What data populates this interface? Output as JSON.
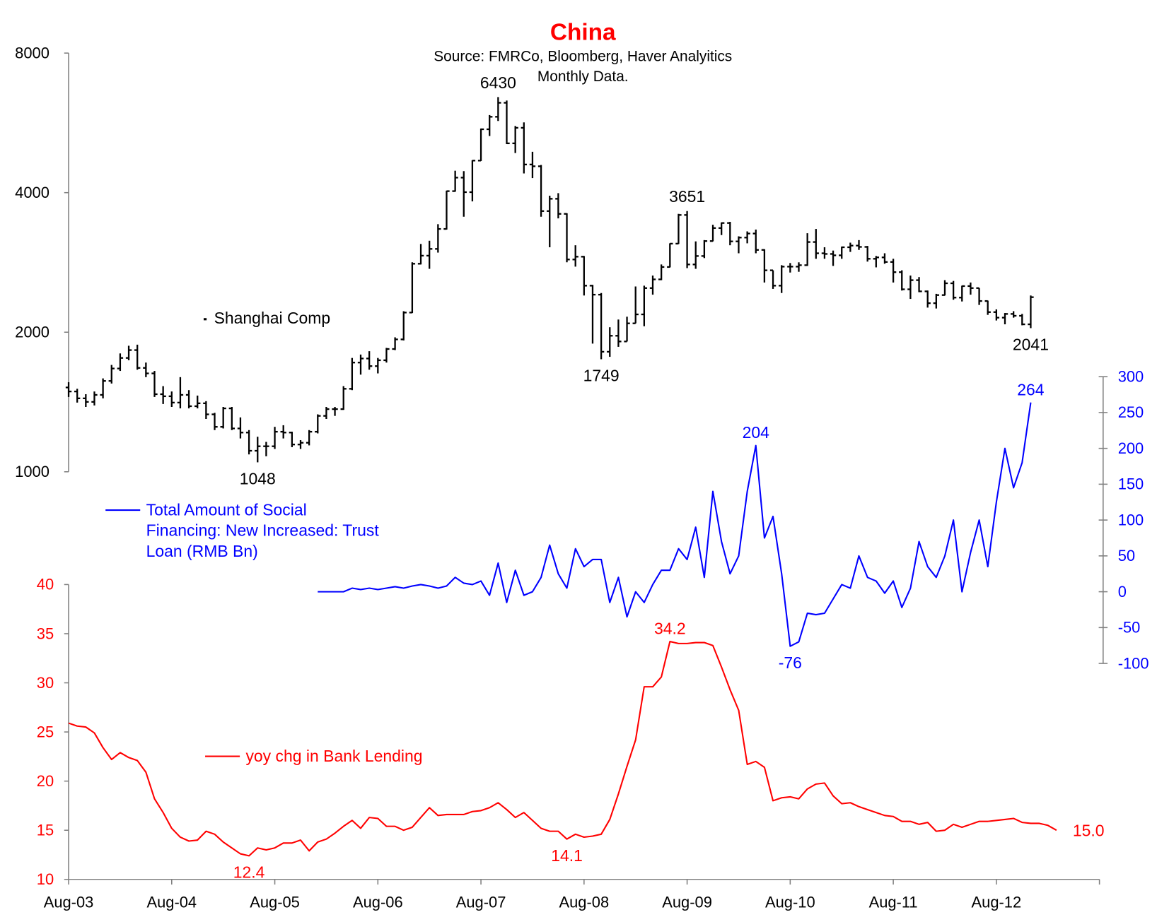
{
  "chart_data": {
    "type": "combo",
    "title": "China",
    "subtitle": [
      "Source: FMRCo, Bloomberg, Haver Analyitics",
      "Monthly Data."
    ],
    "x": [
      "2003-08",
      "2003-09",
      "2003-10",
      "2003-11",
      "2003-12",
      "2004-01",
      "2004-02",
      "2004-03",
      "2004-04",
      "2004-05",
      "2004-06",
      "2004-07",
      "2004-08",
      "2004-09",
      "2004-10",
      "2004-11",
      "2004-12",
      "2005-01",
      "2005-02",
      "2005-03",
      "2005-04",
      "2005-05",
      "2005-06",
      "2005-07",
      "2005-08",
      "2005-09",
      "2005-10",
      "2005-11",
      "2005-12",
      "2006-01",
      "2006-02",
      "2006-03",
      "2006-04",
      "2006-05",
      "2006-06",
      "2006-07",
      "2006-08",
      "2006-09",
      "2006-10",
      "2006-11",
      "2006-12",
      "2007-01",
      "2007-02",
      "2007-03",
      "2007-04",
      "2007-05",
      "2007-06",
      "2007-07",
      "2007-08",
      "2007-09",
      "2007-10",
      "2007-11",
      "2007-12",
      "2008-01",
      "2008-02",
      "2008-03",
      "2008-04",
      "2008-05",
      "2008-06",
      "2008-07",
      "2008-08",
      "2008-09",
      "2008-10",
      "2008-11",
      "2008-12",
      "2009-01",
      "2009-02",
      "2009-03",
      "2009-04",
      "2009-05",
      "2009-06",
      "2009-07",
      "2009-08",
      "2009-09",
      "2009-10",
      "2009-11",
      "2009-12",
      "2010-01",
      "2010-02",
      "2010-03",
      "2010-04",
      "2010-05",
      "2010-06",
      "2010-07",
      "2010-08",
      "2010-09",
      "2010-10",
      "2010-11",
      "2010-12",
      "2011-01",
      "2011-02",
      "2011-03",
      "2011-04",
      "2011-05",
      "2011-06",
      "2011-07",
      "2011-08",
      "2011-09",
      "2011-10",
      "2011-11",
      "2011-12",
      "2012-01",
      "2012-02",
      "2012-03",
      "2012-04",
      "2012-05",
      "2012-06",
      "2012-07",
      "2012-08",
      "2012-09",
      "2012-10",
      "2012-11",
      "2012-12",
      "2013-01",
      "2013-02",
      "2013-03"
    ],
    "xlim": [
      "2003-08",
      "2013-08"
    ],
    "xticks": [
      {
        "value": "2003-08",
        "label": "Aug-03"
      },
      {
        "value": "2004-08",
        "label": "Aug-04"
      },
      {
        "value": "2005-08",
        "label": "Aug-05"
      },
      {
        "value": "2006-08",
        "label": "Aug-06"
      },
      {
        "value": "2007-08",
        "label": "Aug-07"
      },
      {
        "value": "2008-08",
        "label": "Aug-08"
      },
      {
        "value": "2009-08",
        "label": "Aug-09"
      },
      {
        "value": "2010-08",
        "label": "Aug-10"
      },
      {
        "value": "2011-08",
        "label": "Aug-11"
      },
      {
        "value": "2012-08",
        "label": "Aug-12"
      }
    ],
    "ylim": [
      1000,
      8000
    ],
    "yticks": [
      1000,
      2000,
      4000,
      8000
    ],
    "ylog": true,
    "y2lim": [
      -100,
      300
    ],
    "y2ticks": [
      -100,
      -50,
      0,
      50,
      100,
      150,
      200,
      250,
      300
    ],
    "y3lim": [
      10,
      40
    ],
    "y3ticks": [
      10,
      15,
      20,
      25,
      30,
      35,
      40
    ],
    "series": [
      {
        "name": "Shanghai Comp",
        "type": "ohlc",
        "color": "#000000",
        "axis": "y",
        "open": [
          1520,
          1490,
          1440,
          1415,
          1465,
          1570,
          1670,
          1760,
          1830,
          1675,
          1630,
          1470,
          1455,
          1410,
          1465,
          1385,
          1405,
          1330,
          1250,
          1370,
          1240,
          1215,
          1110,
          1135,
          1135,
          1220,
          1215,
          1145,
          1155,
          1220,
          1320,
          1365,
          1365,
          1510,
          1720,
          1755,
          1690,
          1740,
          1840,
          1930,
          2205,
          2810,
          2925,
          3025,
          3340,
          4030,
          4310,
          4010,
          4690,
          5480,
          5830,
          6250,
          5110,
          5520,
          4600,
          4560,
          3650,
          3880,
          3600,
          2870,
          2910,
          2520,
          2410,
          1815,
          1965,
          1910,
          2090,
          2185,
          2490,
          2600,
          2765,
          3105,
          3580,
          2800,
          2920,
          3145,
          3355,
          3440,
          3140,
          3200,
          3265,
          3010,
          2720,
          2520,
          2770,
          2770,
          2790,
          3130,
          2960,
          2950,
          2930,
          3050,
          3075,
          3055,
          2880,
          2900,
          2835,
          2695,
          2475,
          2590,
          2450,
          2310,
          2405,
          2550,
          2375,
          2515,
          2490,
          2335,
          2210,
          2150,
          2190,
          2170,
          2080,
          null,
          null,
          null
        ],
        "high": [
          1560,
          1510,
          1470,
          1490,
          1590,
          1700,
          1800,
          1870,
          1880,
          1720,
          1650,
          1530,
          1490,
          1600,
          1500,
          1460,
          1420,
          1340,
          1380,
          1380,
          1310,
          1230,
          1190,
          1160,
          1250,
          1260,
          1220,
          1170,
          1230,
          1330,
          1380,
          1380,
          1530,
          1760,
          1790,
          1820,
          1760,
          1850,
          1950,
          2220,
          2830,
          3100,
          3150,
          3420,
          4040,
          4460,
          4450,
          4700,
          5500,
          5880,
          6430,
          6320,
          5570,
          5670,
          4900,
          4590,
          3940,
          3990,
          3610,
          3080,
          2920,
          2530,
          2430,
          2050,
          2130,
          2160,
          2510,
          2520,
          2650,
          2800,
          3110,
          3600,
          3651,
          3140,
          3160,
          3410,
          3450,
          3460,
          3220,
          3300,
          3330,
          3020,
          2720,
          2790,
          2820,
          2830,
          3270,
          3340,
          3050,
          3000,
          3060,
          3120,
          3160,
          3070,
          2920,
          2960,
          2880,
          2720,
          2650,
          2630,
          2460,
          2420,
          2590,
          2580,
          2520,
          2560,
          2490,
          2340,
          2240,
          2200,
          2220,
          2190,
          2400,
          null,
          null,
          null
        ],
        "low": [
          1450,
          1410,
          1380,
          1390,
          1440,
          1550,
          1650,
          1740,
          1660,
          1600,
          1450,
          1400,
          1380,
          1370,
          1370,
          1370,
          1300,
          1230,
          1240,
          1230,
          1180,
          1090,
          1048,
          1080,
          1120,
          1180,
          1130,
          1120,
          1140,
          1210,
          1300,
          1320,
          1360,
          1500,
          1620,
          1660,
          1630,
          1720,
          1830,
          1920,
          2200,
          2800,
          2740,
          2970,
          3330,
          4020,
          3550,
          3830,
          4680,
          5300,
          5710,
          5090,
          4870,
          4400,
          4300,
          3550,
          3050,
          3520,
          2830,
          2770,
          2400,
          1890,
          1749,
          1770,
          1860,
          1910,
          2090,
          2060,
          2410,
          2590,
          2760,
          3100,
          2750,
          2740,
          2890,
          3140,
          3240,
          3080,
          2960,
          3110,
          2960,
          2560,
          2480,
          2430,
          2690,
          2700,
          2780,
          2880,
          2880,
          2780,
          2880,
          2980,
          3010,
          2840,
          2760,
          2810,
          2560,
          2460,
          2360,
          2440,
          2260,
          2250,
          2400,
          2350,
          2330,
          2410,
          2290,
          2180,
          2120,
          2080,
          2150,
          2070,
          2041,
          null,
          null,
          null
        ],
        "close": [
          1490,
          1440,
          1415,
          1465,
          1570,
          1670,
          1760,
          1830,
          1675,
          1630,
          1470,
          1455,
          1410,
          1465,
          1385,
          1405,
          1330,
          1250,
          1370,
          1240,
          1215,
          1110,
          1135,
          1135,
          1220,
          1215,
          1145,
          1155,
          1220,
          1320,
          1365,
          1365,
          1510,
          1720,
          1755,
          1690,
          1740,
          1840,
          1930,
          2205,
          2810,
          2925,
          3025,
          3340,
          4030,
          4310,
          4010,
          4690,
          5480,
          5830,
          6250,
          5110,
          5520,
          4600,
          4560,
          3650,
          3880,
          3600,
          2870,
          2910,
          2520,
          2410,
          1815,
          1965,
          1910,
          2090,
          2185,
          2490,
          2600,
          2765,
          3105,
          3580,
          2800,
          2920,
          3145,
          3355,
          3440,
          3140,
          3200,
          3265,
          3010,
          2720,
          2520,
          2770,
          2770,
          2790,
          3130,
          2960,
          2950,
          2930,
          3050,
          3075,
          3055,
          2880,
          2900,
          2835,
          2695,
          2475,
          2590,
          2450,
          2310,
          2405,
          2550,
          2375,
          2515,
          2490,
          2335,
          2210,
          2150,
          2190,
          2170,
          2080,
          2380,
          null,
          null,
          null
        ],
        "annotations": [
          {
            "x": "2005-06",
            "text": "1048"
          },
          {
            "x": "2007-10",
            "text": "6430"
          },
          {
            "x": "2008-10",
            "text": "1749"
          },
          {
            "x": "2009-08",
            "text": "3651"
          },
          {
            "x": "2012-12",
            "text": "2041"
          }
        ]
      },
      {
        "name": "Total Amount of Social Financing: New Increased: Trust Loan (RMB Bn)",
        "type": "line",
        "color": "#0000ff",
        "axis": "y2",
        "values": [
          null,
          null,
          null,
          null,
          null,
          null,
          null,
          null,
          null,
          null,
          null,
          null,
          null,
          null,
          null,
          null,
          null,
          null,
          null,
          null,
          null,
          null,
          null,
          null,
          null,
          null,
          null,
          null,
          null,
          0,
          0,
          0,
          0,
          5,
          3,
          5,
          3,
          5,
          7,
          5,
          8,
          10,
          8,
          5,
          8,
          20,
          12,
          10,
          15,
          -5,
          40,
          -15,
          30,
          -5,
          0,
          20,
          65,
          25,
          5,
          60,
          35,
          45,
          45,
          -15,
          20,
          -35,
          0,
          -15,
          10,
          30,
          30,
          60,
          45,
          90,
          20,
          140,
          70,
          25,
          50,
          140,
          204,
          75,
          105,
          25,
          -76,
          -70,
          -30,
          -32,
          -30,
          -10,
          10,
          5,
          50,
          20,
          15,
          -2,
          15,
          -22,
          5,
          70,
          35,
          20,
          50,
          100,
          0,
          55,
          100,
          35,
          125,
          200,
          145,
          180,
          264,
          null,
          null,
          null
        ],
        "annotations": [
          {
            "x": "2010-04",
            "text": "204"
          },
          {
            "x": "2010-08",
            "text": "-76"
          },
          {
            "x": "2012-12",
            "text": "264"
          }
        ]
      },
      {
        "name": "yoy chg in Bank Lending",
        "type": "line",
        "color": "#ff0000",
        "axis": "y3",
        "values": [
          25.9,
          25.6,
          25.5,
          24.9,
          23.4,
          22.2,
          22.9,
          22.4,
          22.1,
          20.9,
          18.2,
          16.8,
          15.2,
          14.3,
          13.9,
          14.0,
          14.9,
          14.6,
          13.8,
          13.2,
          12.6,
          12.4,
          13.2,
          13.0,
          13.2,
          13.7,
          13.7,
          14.0,
          12.9,
          13.8,
          14.1,
          14.7,
          15.4,
          16.0,
          15.2,
          16.3,
          16.2,
          15.4,
          15.4,
          15.0,
          15.3,
          16.3,
          17.3,
          16.5,
          16.6,
          16.6,
          16.6,
          16.9,
          17.0,
          17.3,
          17.8,
          17.1,
          16.3,
          16.8,
          16.0,
          15.2,
          14.9,
          14.9,
          14.1,
          14.6,
          14.3,
          14.4,
          14.6,
          16.1,
          18.7,
          21.5,
          24.2,
          29.6,
          29.6,
          30.6,
          34.2,
          34.0,
          34.0,
          34.1,
          34.1,
          33.8,
          31.6,
          29.3,
          27.2,
          21.7,
          22.0,
          21.4,
          18.0,
          18.3,
          18.4,
          18.2,
          19.2,
          19.7,
          19.8,
          18.5,
          17.7,
          17.8,
          17.4,
          17.1,
          16.8,
          16.5,
          16.4,
          15.9,
          15.9,
          15.6,
          15.8,
          14.9,
          15.0,
          15.6,
          15.3,
          15.6,
          15.9,
          15.9,
          16.0,
          16.1,
          16.2,
          15.8,
          15.7,
          15.7,
          15.5,
          15.0
        ],
        "annotations": [
          {
            "x": "2005-05",
            "text": "12.4"
          },
          {
            "x": "2008-06",
            "text": "14.1"
          },
          {
            "x": "2009-06",
            "text": "34.2"
          },
          {
            "x": "2013-03",
            "text": "15.0"
          }
        ]
      }
    ]
  }
}
